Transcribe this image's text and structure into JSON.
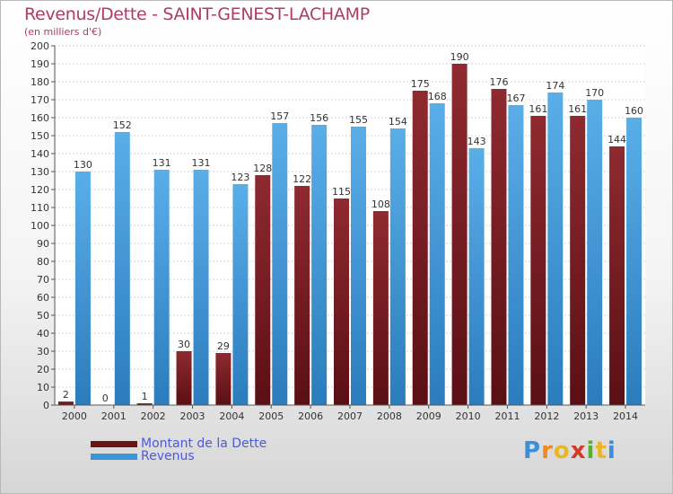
{
  "header": {
    "title": "Revenus/Dette - SAINT-GENEST-LACHAMP",
    "subtitle": "(en milliers d'€)"
  },
  "colors": {
    "dette": "#7a1c22",
    "revenus": "#3a96d8",
    "title": "#b03a6a",
    "legend_text": "#4a5ad8"
  },
  "chart_data": {
    "type": "bar",
    "title": "Revenus/Dette - SAINT-GENEST-LACHAMP",
    "subtitle": "(en milliers d'€)",
    "categories": [
      "2000",
      "2001",
      "2002",
      "2003",
      "2004",
      "2005",
      "2006",
      "2007",
      "2008",
      "2009",
      "2010",
      "2011",
      "2012",
      "2013",
      "2014"
    ],
    "series": [
      {
        "name": "Montant de la Dette",
        "values": [
          2,
          0,
          1,
          30,
          29,
          128,
          122,
          115,
          108,
          175,
          190,
          176,
          161,
          161,
          144
        ],
        "labels": [
          "2",
          "0",
          "1",
          "30",
          "29",
          "128",
          "122",
          "115",
          "108",
          "175",
          "190",
          "176",
          "161",
          "161",
          "144"
        ]
      },
      {
        "name": "Revenus",
        "values": [
          130,
          152,
          131,
          131,
          123,
          157,
          156,
          155,
          154,
          168,
          143,
          167,
          174,
          170,
          160
        ],
        "labels": [
          "130",
          "152",
          "131",
          "131",
          "123",
          "157",
          "156",
          "155",
          "154",
          "168",
          "143",
          "167",
          "174",
          "170",
          "160"
        ]
      }
    ],
    "yticks": [
      0,
      10,
      20,
      30,
      40,
      50,
      60,
      70,
      80,
      90,
      100,
      110,
      120,
      130,
      140,
      150,
      160,
      170,
      180,
      190,
      200
    ],
    "ylim": [
      0,
      200
    ],
    "grid": true,
    "legend": "bottom-left"
  },
  "legend": {
    "items": [
      {
        "label": "Montant de la Dette",
        "color": "#7a1c22"
      },
      {
        "label": "Revenus",
        "color": "#3a96d8"
      }
    ]
  },
  "logo": {
    "letters": [
      "P",
      "r",
      "o",
      "x",
      "i",
      "t",
      "i"
    ],
    "colors": [
      "#3a8fd8",
      "#f08a1e",
      "#e8b62a",
      "#d23a2a",
      "#58b030",
      "#e8b62a",
      "#3a8fd8"
    ]
  }
}
